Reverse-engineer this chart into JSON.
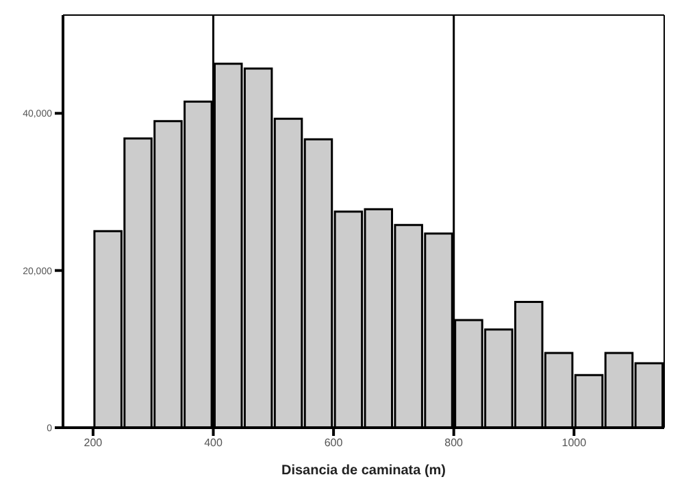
{
  "chart_data": {
    "type": "histogram",
    "xlabel": "Disancia de caminata (m)",
    "bins": [
      200,
      250,
      300,
      350,
      400,
      450,
      500,
      550,
      600,
      650,
      700,
      750,
      800,
      850,
      900,
      950,
      1000,
      1050,
      1100,
      1150
    ],
    "values": [
      25000,
      36800,
      39000,
      41500,
      46300,
      45700,
      39300,
      36700,
      27500,
      27800,
      25800,
      24700,
      13700,
      12500,
      16000,
      9500,
      6700,
      9500,
      8200
    ],
    "color": "#cccccc",
    "xlim": [
      150,
      1150
    ],
    "xticks": [
      200,
      400,
      600,
      800,
      1000
    ],
    "ylim": [
      0,
      52500
    ],
    "yticks": [
      0,
      {
        "value": 20000,
        "label": "20,000"
      },
      {
        "value": 40000,
        "label": "40,000"
      }
    ],
    "ref_lines": [
      {
        "axis": "x",
        "value": 400,
        "color": "#000000"
      },
      {
        "axis": "x",
        "value": 800,
        "color": "#000000"
      }
    ],
    "grid": false,
    "legend": false
  }
}
